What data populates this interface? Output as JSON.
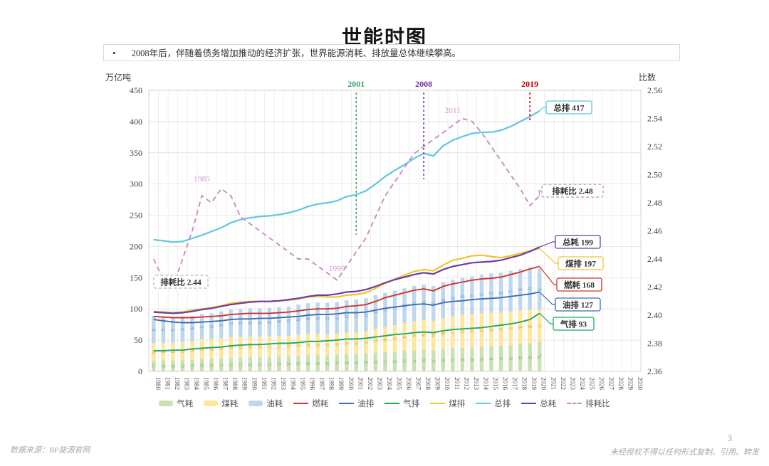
{
  "page": {
    "title": "世能时图",
    "bullet": "•",
    "bullet_note": "2008年后，伴随着债务增加推动的经济扩张，世界能源消耗、排放量总体继续攀高。",
    "page_number": "3",
    "footer_left": "数据来源：BP能源官网",
    "footer_right": "未经授权不得以任何形式复制、引用、转发"
  },
  "chart_data": {
    "type": "combo-bar-line",
    "left_axis": {
      "label": "万亿吨",
      "min": 0,
      "max": 450,
      "step": 50
    },
    "right_axis": {
      "label": "比数",
      "min": 2.36,
      "max": 2.56,
      "step": 0.02
    },
    "x_axis": {
      "first_year": 1980,
      "last_year": 2030,
      "data_first_year": 1980,
      "data_last_year": 2020
    },
    "grid": true,
    "legend_position": "bottom",
    "bar_series": [
      {
        "id": "gas-consumption",
        "name": "气耗",
        "color": "#c9e2b3",
        "label_color": "#86b060",
        "values": [
          17,
          18,
          18,
          18,
          19,
          20,
          20,
          21,
          22,
          22,
          23,
          23,
          23,
          24,
          24,
          25,
          26,
          26,
          26,
          27,
          28,
          28,
          29,
          30,
          31,
          32,
          33,
          34,
          35,
          34,
          36,
          37,
          38,
          38,
          39,
          40,
          41,
          42,
          44,
          45,
          47
        ]
      },
      {
        "id": "coal-consumption",
        "name": "煤耗",
        "color": "#ffe699",
        "label_color": "#d9a42f",
        "values": [
          28,
          28,
          28,
          29,
          30,
          31,
          31,
          32,
          33,
          33,
          33,
          33,
          33,
          33,
          33,
          34,
          34,
          34,
          33,
          33,
          34,
          34,
          35,
          38,
          40,
          42,
          44,
          46,
          47,
          47,
          49,
          51,
          52,
          53,
          54,
          54,
          53,
          54,
          54,
          54,
          52
        ]
      },
      {
        "id": "oil-consumption",
        "name": "油耗",
        "color": "#bdd7ee",
        "label_color": "#6d9ad0",
        "values": [
          44,
          42,
          41,
          41,
          40,
          41,
          42,
          43,
          44,
          45,
          45,
          45,
          46,
          46,
          47,
          48,
          49,
          50,
          51,
          51,
          52,
          53,
          53,
          54,
          55,
          55,
          56,
          57,
          57,
          56,
          58,
          59,
          60,
          61,
          62,
          63,
          64,
          65,
          66,
          67,
          66
        ]
      }
    ],
    "line_series": [
      {
        "id": "coal-emissions",
        "name": "煤排",
        "color": "#f2c233",
        "end_label": "煤排 197",
        "values": [
          96,
          95,
          94,
          95,
          98,
          100,
          102,
          105,
          109,
          111,
          112,
          112,
          112,
          113,
          114,
          116,
          119,
          120,
          119,
          119,
          122,
          123,
          126,
          133,
          141,
          148,
          154,
          160,
          163,
          161,
          170,
          178,
          181,
          185,
          186,
          184,
          182,
          185,
          189,
          193,
          197
        ]
      },
      {
        "id": "fuel-consumption",
        "name": "燃耗",
        "color": "#d0342c",
        "end_label": "燃耗 168",
        "values": [
          88,
          87,
          86,
          86,
          86,
          87,
          88,
          89,
          91,
          92,
          93,
          93,
          93,
          94,
          95,
          97,
          99,
          100,
          100,
          101,
          104,
          105,
          107,
          112,
          118,
          122,
          126,
          130,
          132,
          129,
          136,
          140,
          143,
          146,
          148,
          149,
          151,
          155,
          159,
          164,
          168
        ]
      },
      {
        "id": "oil-emissions",
        "name": "油排",
        "color": "#3f6bb4",
        "end_label": "油排 127",
        "values": [
          83,
          81,
          79,
          78,
          78,
          79,
          80,
          81,
          83,
          84,
          84,
          85,
          85,
          86,
          87,
          88,
          90,
          91,
          91,
          92,
          94,
          94,
          95,
          98,
          101,
          103,
          105,
          107,
          108,
          106,
          110,
          112,
          113,
          115,
          116,
          117,
          118,
          120,
          122,
          124,
          127
        ]
      },
      {
        "id": "gas-emissions",
        "name": "气排",
        "color": "#1faa5f",
        "end_label": "气排 93",
        "values": [
          33,
          33,
          34,
          34,
          36,
          37,
          38,
          39,
          41,
          42,
          43,
          43,
          44,
          45,
          45,
          46,
          48,
          48,
          49,
          50,
          52,
          52,
          53,
          55,
          57,
          59,
          60,
          62,
          63,
          62,
          65,
          67,
          68,
          69,
          70,
          72,
          74,
          76,
          79,
          83,
          93
        ]
      },
      {
        "id": "total-consumption",
        "name": "总耗",
        "color": "#6a3fa0",
        "end_label": "总耗 199",
        "values": [
          95,
          94,
          93,
          94,
          96,
          99,
          101,
          104,
          107,
          109,
          111,
          112,
          112,
          113,
          115,
          117,
          120,
          122,
          122,
          124,
          127,
          128,
          131,
          136,
          142,
          147,
          151,
          155,
          158,
          156,
          163,
          168,
          171,
          174,
          175,
          176,
          178,
          182,
          186,
          192,
          199
        ]
      },
      {
        "id": "total-emissions",
        "name": "总排",
        "color": "#5ec8dd",
        "end_label": "总排 417",
        "values": [
          211,
          209,
          207,
          208,
          213,
          218,
          224,
          230,
          238,
          243,
          246,
          248,
          249,
          251,
          254,
          258,
          264,
          268,
          270,
          273,
          280,
          283,
          289,
          300,
          312,
          322,
          331,
          341,
          349,
          345,
          361,
          370,
          376,
          381,
          383,
          383,
          386,
          392,
          400,
          408,
          417
        ]
      }
    ],
    "ratio_series": {
      "id": "emission-consumption-ratio",
      "name": "排耗比",
      "color": "#c98cc0",
      "start_label": "排耗比 2.44",
      "end_label": "排耗比 2.48",
      "values": [
        2.44,
        2.425,
        2.42,
        2.44,
        2.46,
        2.485,
        2.48,
        2.49,
        2.485,
        2.47,
        2.465,
        2.46,
        2.455,
        2.45,
        2.445,
        2.44,
        2.44,
        2.435,
        2.43,
        2.425,
        2.435,
        2.445,
        2.455,
        2.47,
        2.485,
        2.495,
        2.505,
        2.515,
        2.52,
        2.525,
        2.53,
        2.535,
        2.54,
        2.538,
        2.53,
        2.52,
        2.51,
        2.5,
        2.49,
        2.478,
        2.485
      ]
    },
    "event_lines": [
      {
        "year": 2001,
        "label": "2001",
        "color": "#3fa06b"
      },
      {
        "year": 2008,
        "label": "2008",
        "color": "#7030a0"
      },
      {
        "year": 2019,
        "label": "2019",
        "color": "#c00000"
      }
    ],
    "peak_labels": [
      {
        "year": 1985,
        "label": "1985",
        "color": "#cf9fca"
      },
      {
        "year": 1999,
        "label": "1999",
        "color": "#cf9fca"
      },
      {
        "year": 2011,
        "label": "2011",
        "color": "#cf9fca"
      }
    ],
    "legend": [
      {
        "label": "气耗",
        "swatch": "patch",
        "color": "#c9e2b3"
      },
      {
        "label": "煤耗",
        "swatch": "patch",
        "color": "#ffe699"
      },
      {
        "label": "油耗",
        "swatch": "patch",
        "color": "#bdd7ee"
      },
      {
        "label": "燃耗",
        "swatch": "line",
        "color": "#d0342c"
      },
      {
        "label": "油排",
        "swatch": "line",
        "color": "#3f6bb4"
      },
      {
        "label": "气排",
        "swatch": "line",
        "color": "#1faa5f"
      },
      {
        "label": "煤排",
        "swatch": "line",
        "color": "#f2c233"
      },
      {
        "label": "总排",
        "swatch": "line",
        "color": "#5ec8dd"
      },
      {
        "label": "总耗",
        "swatch": "line",
        "color": "#6a3fa0"
      },
      {
        "label": "排耗比",
        "swatch": "dash",
        "color": "#c98cc0"
      }
    ]
  }
}
